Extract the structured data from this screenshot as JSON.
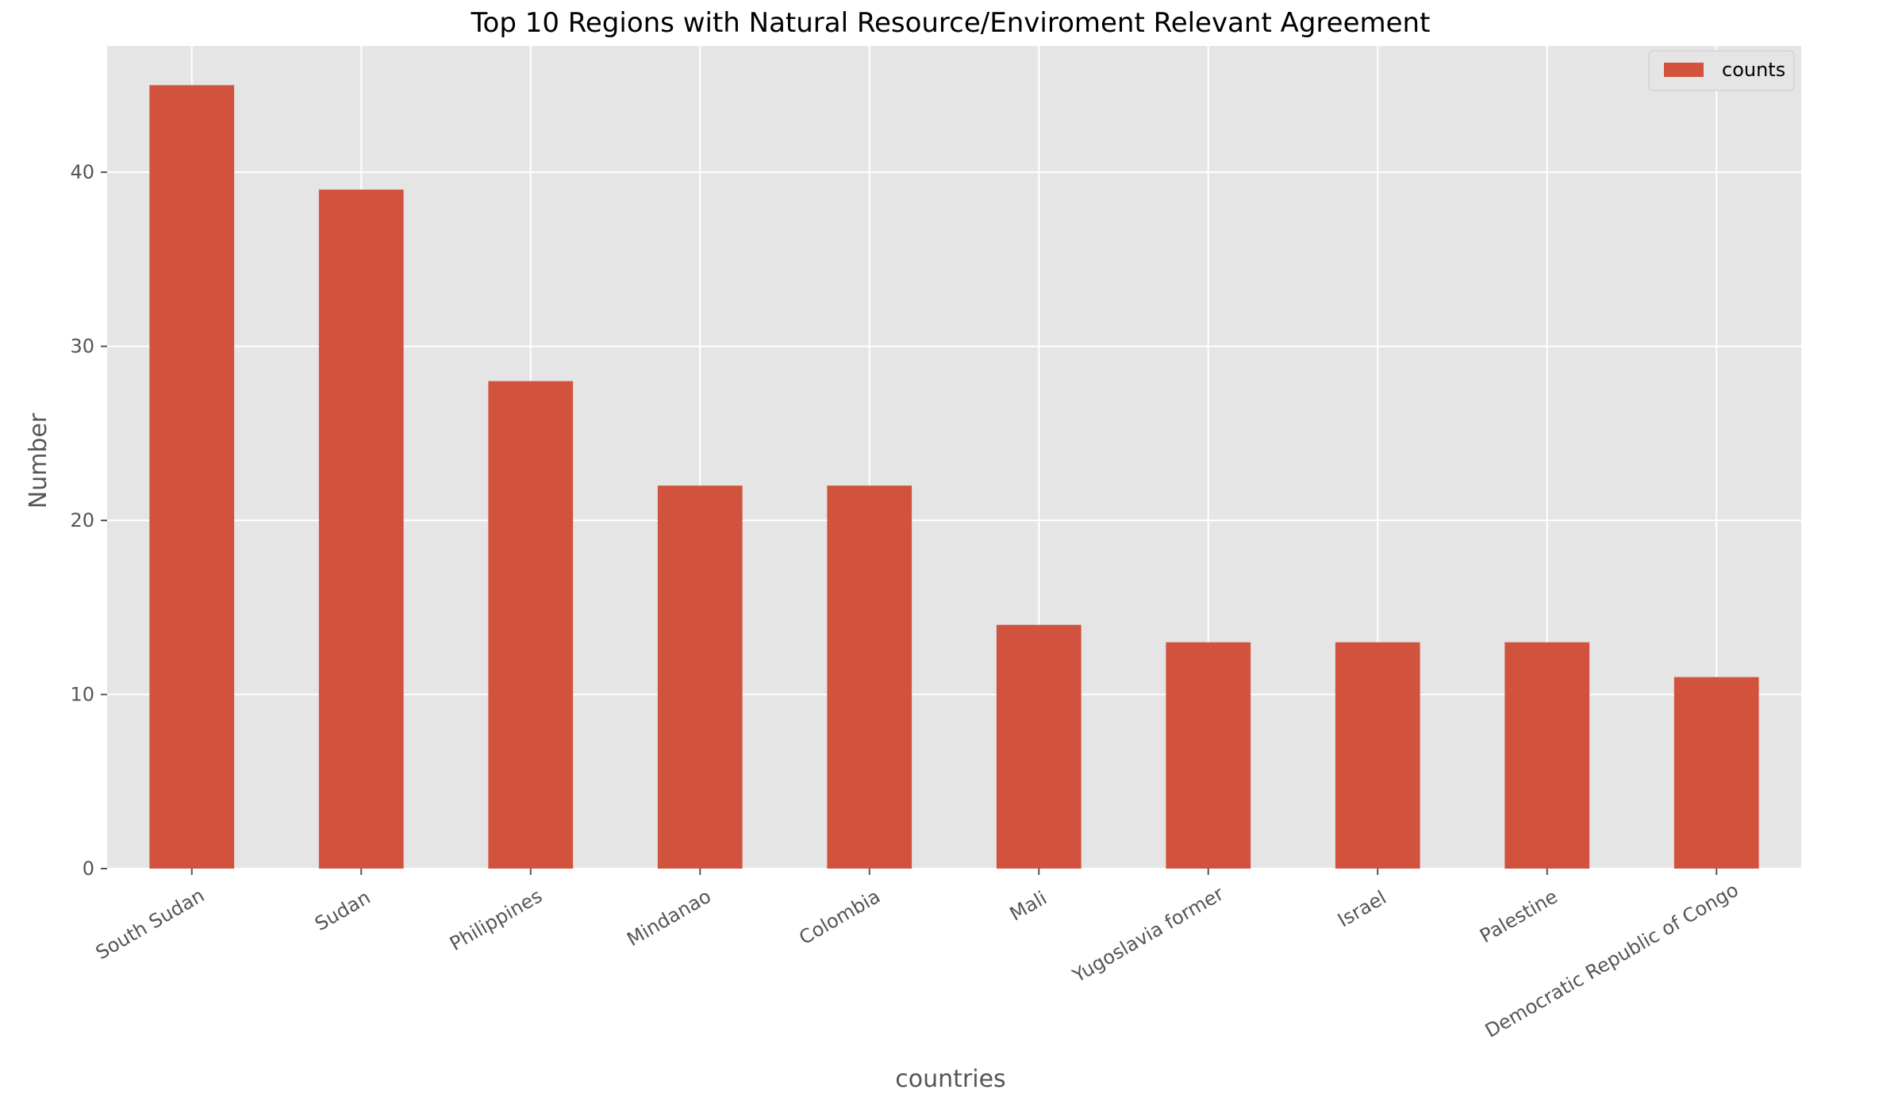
{
  "chart_data": {
    "type": "bar",
    "title": "Top 10 Regions with Natural Resource/Enviroment Relevant Agreement",
    "xlabel": "countries",
    "ylabel": "Number",
    "categories": [
      "South Sudan",
      "Sudan",
      "Philippines",
      "Mindanao",
      "Colombia",
      "Mali",
      "Yugoslavia former",
      "Israel",
      "Palestine",
      "Democratic Republic of Congo"
    ],
    "series": [
      {
        "name": "counts",
        "values": [
          45,
          39,
          28,
          22,
          22,
          14,
          13,
          13,
          13,
          11
        ],
        "color": "#d1533e"
      }
    ],
    "yticks": [
      0,
      10,
      20,
      30,
      40
    ],
    "ylim": [
      0,
      47.25
    ],
    "grid": true,
    "legend_position": "top-right",
    "background_color": "#e5e5e5",
    "grid_color": "#ffffff"
  }
}
